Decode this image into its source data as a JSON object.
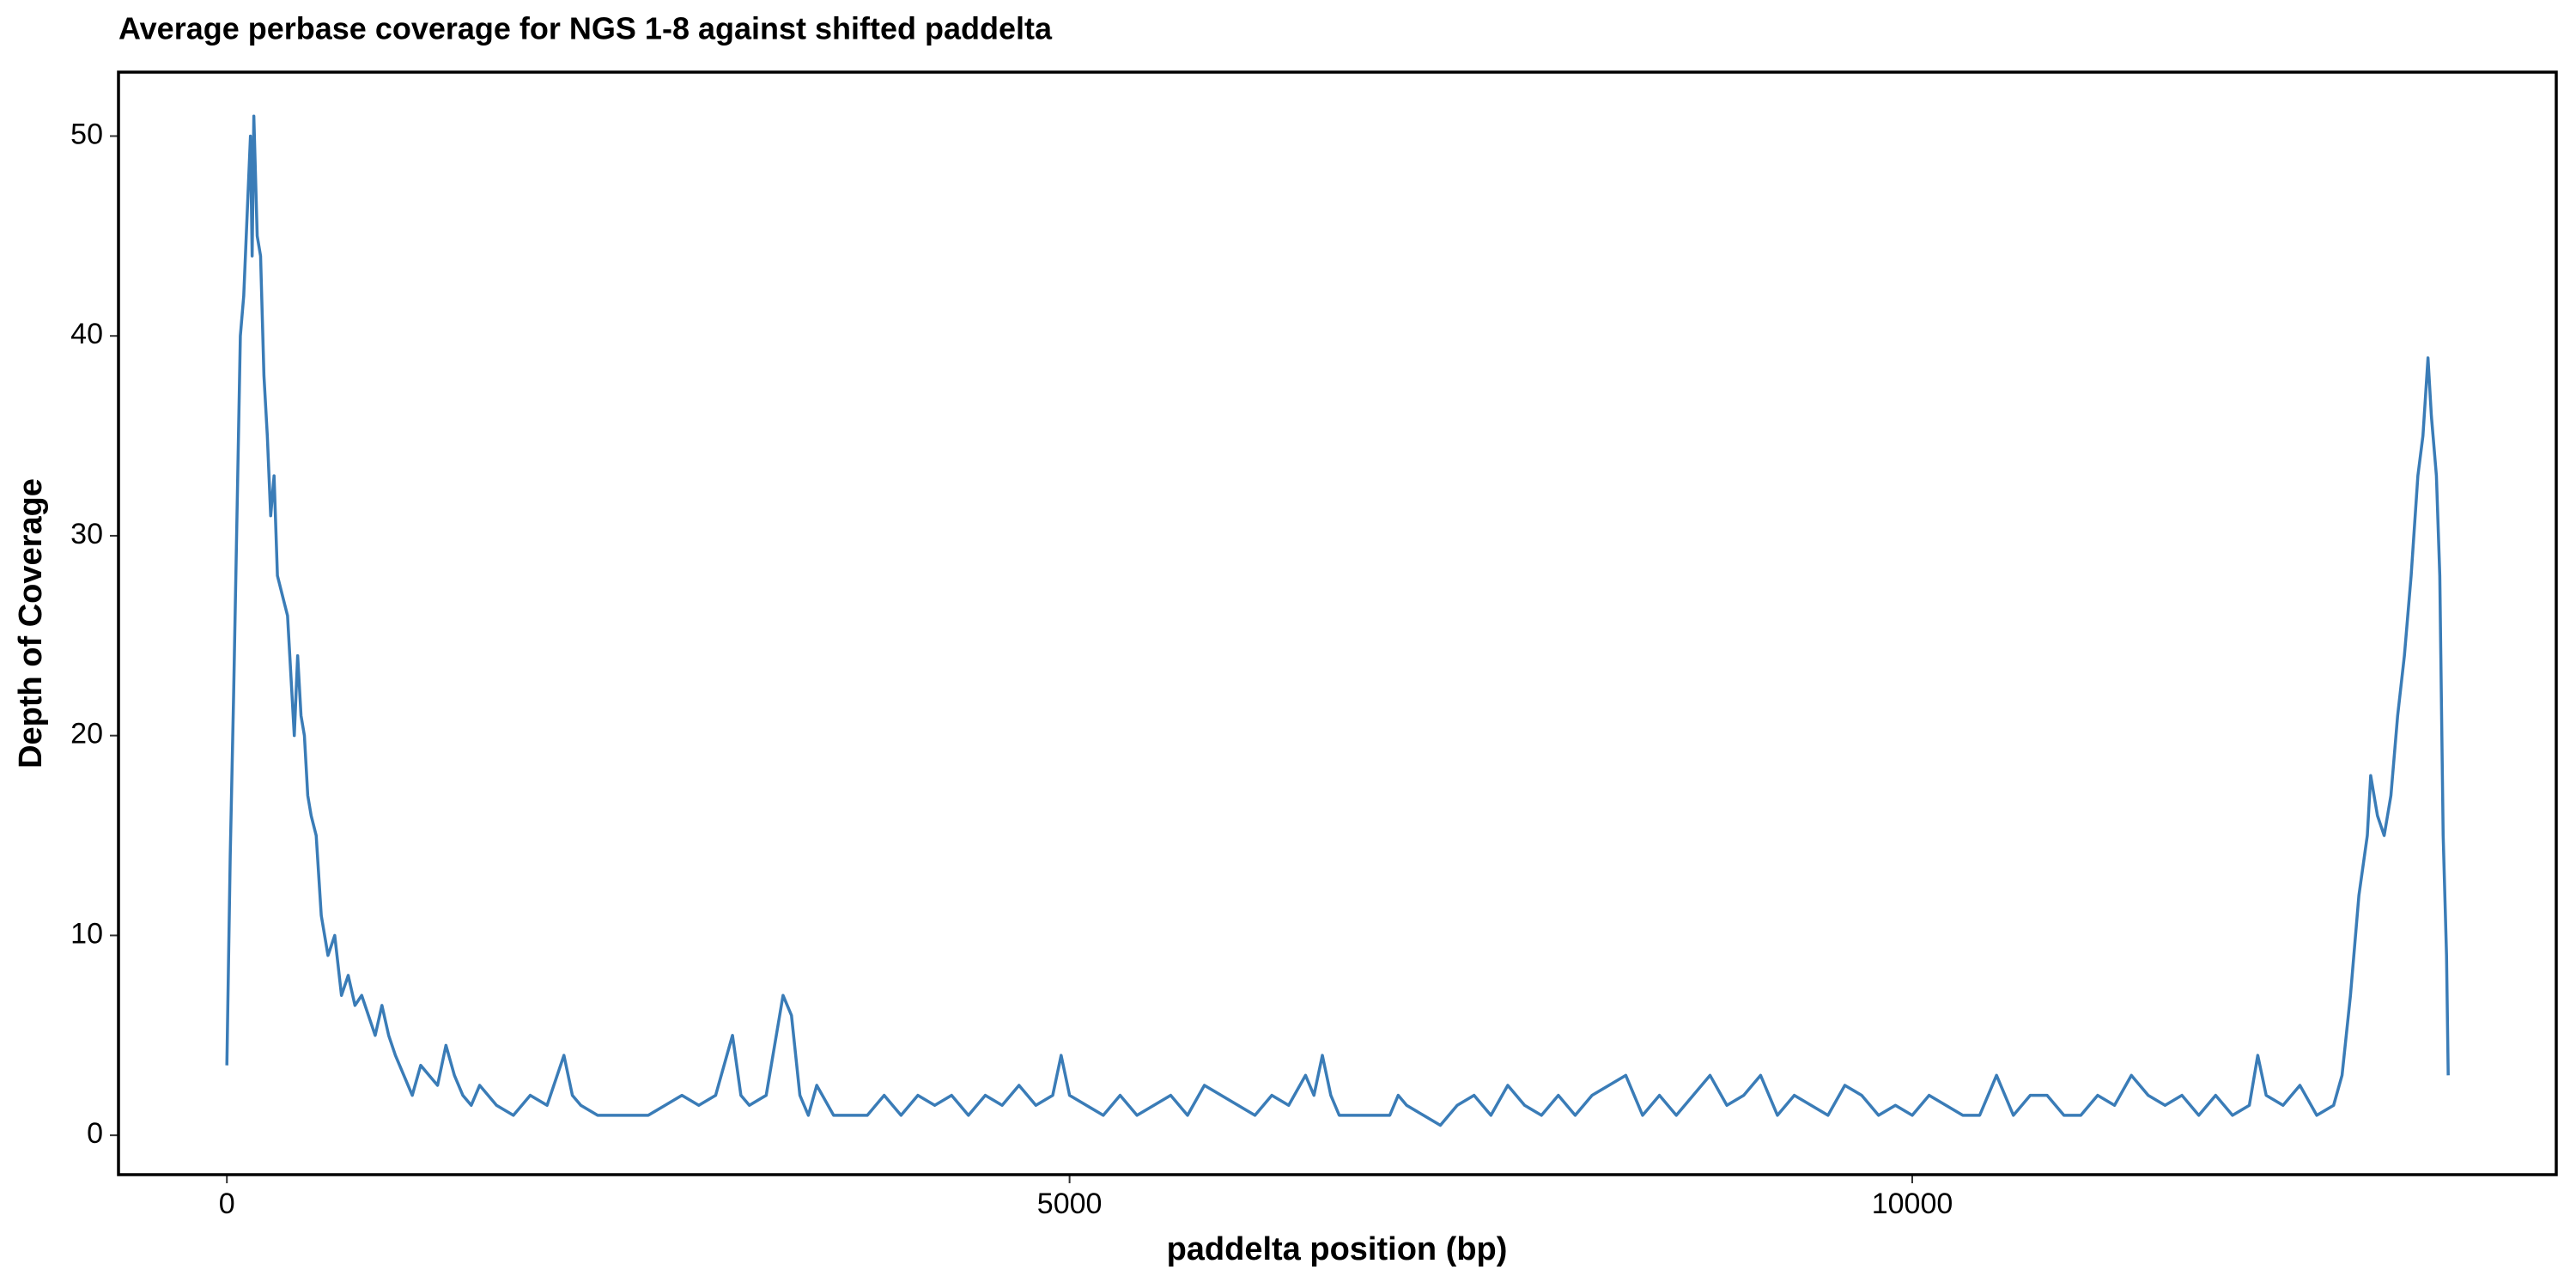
{
  "chart_data": {
    "type": "line",
    "title": "Average perbase coverage for NGS 1-8 against shifted paddelta",
    "x_label": "paddelta position (bp)",
    "y_label": "Depth of Coverage",
    "color": "#3a7cb7",
    "xlim": [
      -643,
      13821
    ],
    "ylim": [
      -1.97,
      53.2
    ],
    "xticks": [
      0,
      5000,
      10000
    ],
    "yticks": [
      0,
      10,
      20,
      30,
      40,
      50
    ],
    "x": [
      0,
      20,
      40,
      60,
      80,
      100,
      120,
      140,
      150,
      160,
      180,
      200,
      220,
      240,
      260,
      280,
      300,
      330,
      360,
      380,
      400,
      420,
      440,
      460,
      480,
      500,
      530,
      560,
      600,
      640,
      680,
      720,
      760,
      800,
      840,
      880,
      920,
      960,
      1000,
      1050,
      1100,
      1150,
      1200,
      1250,
      1300,
      1350,
      1400,
      1450,
      1500,
      1600,
      1700,
      1800,
      1900,
      2000,
      2050,
      2100,
      2200,
      2300,
      2400,
      2500,
      2600,
      2700,
      2800,
      2900,
      3000,
      3050,
      3100,
      3200,
      3300,
      3350,
      3400,
      3450,
      3500,
      3600,
      3800,
      3900,
      4000,
      4100,
      4200,
      4300,
      4400,
      4500,
      4600,
      4700,
      4800,
      4900,
      4950,
      5000,
      5100,
      5200,
      5300,
      5400,
      5500,
      5600,
      5700,
      5800,
      5900,
      6000,
      6100,
      6200,
      6300,
      6400,
      6450,
      6500,
      6550,
      6600,
      6700,
      6800,
      6900,
      6950,
      7000,
      7100,
      7200,
      7300,
      7400,
      7500,
      7600,
      7700,
      7800,
      7900,
      8000,
      8100,
      8200,
      8300,
      8400,
      8500,
      8600,
      8700,
      8800,
      8900,
      9000,
      9100,
      9200,
      9300,
      9400,
      9500,
      9600,
      9700,
      9800,
      9900,
      10000,
      10100,
      10200,
      10300,
      10400,
      10500,
      10600,
      10700,
      10800,
      10900,
      11000,
      11100,
      11200,
      11300,
      11400,
      11500,
      11600,
      11700,
      11800,
      11900,
      12000,
      12050,
      12100,
      12200,
      12300,
      12400,
      12500,
      12550,
      12600,
      12650,
      12700,
      12720,
      12760,
      12800,
      12840,
      12880,
      12920,
      12960,
      13000,
      13030,
      13060,
      13080,
      13110,
      13130,
      13150,
      13170,
      13180
    ],
    "values": [
      3.5,
      14,
      22,
      31,
      40,
      42,
      46,
      50,
      44,
      51,
      45,
      44,
      38,
      35,
      31,
      33,
      28,
      27,
      26,
      23,
      20,
      24,
      21,
      20,
      17,
      16,
      15,
      11,
      9,
      10,
      7,
      8,
      6.5,
      7,
      6,
      5,
      6.5,
      5,
      4,
      3,
      2,
      3.5,
      3,
      2.5,
      4.5,
      3,
      2,
      1.5,
      2.5,
      1.5,
      1,
      2,
      1.5,
      4,
      2,
      1.5,
      1,
      1,
      1,
      1,
      1.5,
      2,
      1.5,
      2,
      5,
      2,
      1.5,
      2,
      7,
      6,
      2,
      1,
      2.5,
      1,
      1,
      2,
      1,
      2,
      1.5,
      2,
      1,
      2,
      1.5,
      2.5,
      1.5,
      2,
      4,
      2,
      1.5,
      1,
      2,
      1,
      1.5,
      2,
      1,
      2.5,
      2,
      1.5,
      1,
      2,
      1.5,
      3,
      2,
      4,
      2,
      1,
      1,
      1,
      1,
      2,
      1.5,
      1,
      0.5,
      1.5,
      2,
      1,
      2.5,
      1.5,
      1,
      2,
      1,
      2,
      2.5,
      3,
      1,
      2,
      1,
      2,
      3,
      1.5,
      2,
      3,
      1,
      2,
      1.5,
      1,
      2.5,
      2,
      1,
      1.5,
      1,
      2,
      1.5,
      1,
      1,
      3,
      1,
      2,
      2,
      1,
      1,
      2,
      1.5,
      3,
      2,
      1.5,
      2,
      1,
      2,
      1,
      1.5,
      4,
      2,
      1.5,
      2.5,
      1,
      1.5,
      3,
      7,
      12,
      15,
      18,
      16,
      15,
      17,
      21,
      24,
      28,
      33,
      35,
      38.9,
      36,
      33,
      28,
      15,
      9,
      3
    ]
  }
}
